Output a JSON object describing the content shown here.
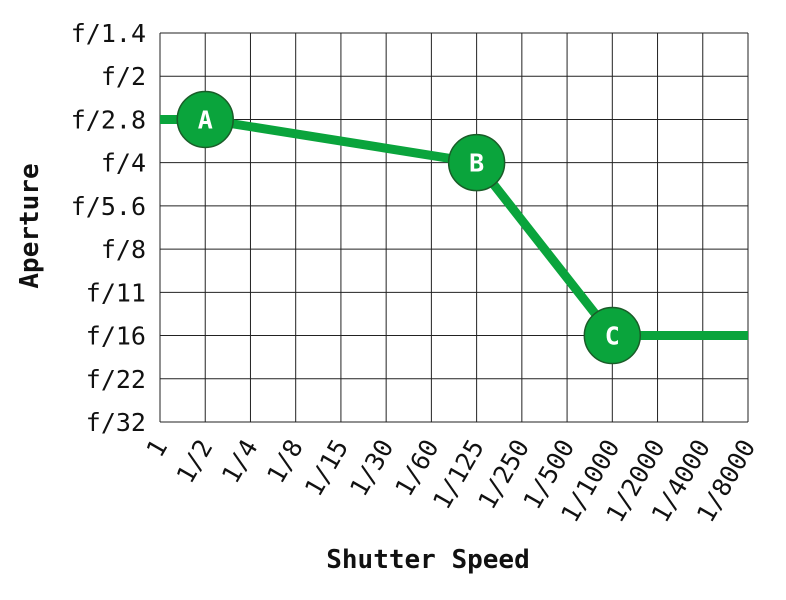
{
  "chart_data": {
    "type": "line",
    "xlabel": "Shutter Speed",
    "ylabel": "Aperture",
    "x_categories": [
      "1",
      "1/2",
      "1/4",
      "1/8",
      "1/15",
      "1/30",
      "1/60",
      "1/125",
      "1/250",
      "1/500",
      "1/1000",
      "1/2000",
      "1/4000",
      "1/8000"
    ],
    "y_categories": [
      "f/1.4",
      "f/2",
      "f/2.8",
      "f/4",
      "f/5.6",
      "f/8",
      "f/11",
      "f/16",
      "f/22",
      "f/32"
    ],
    "grid": true,
    "series": [
      {
        "color": "#0aa43c",
        "points": [
          {
            "x": "1",
            "y": "f/2.8",
            "label": ""
          },
          {
            "x": "1/2",
            "y": "f/2.8",
            "label": "A"
          },
          {
            "x": "1/125",
            "y": "f/4",
            "label": "B"
          },
          {
            "x": "1/1000",
            "y": "f/16",
            "label": "C"
          },
          {
            "x": "1/8000",
            "y": "f/16",
            "label": ""
          }
        ]
      }
    ]
  }
}
